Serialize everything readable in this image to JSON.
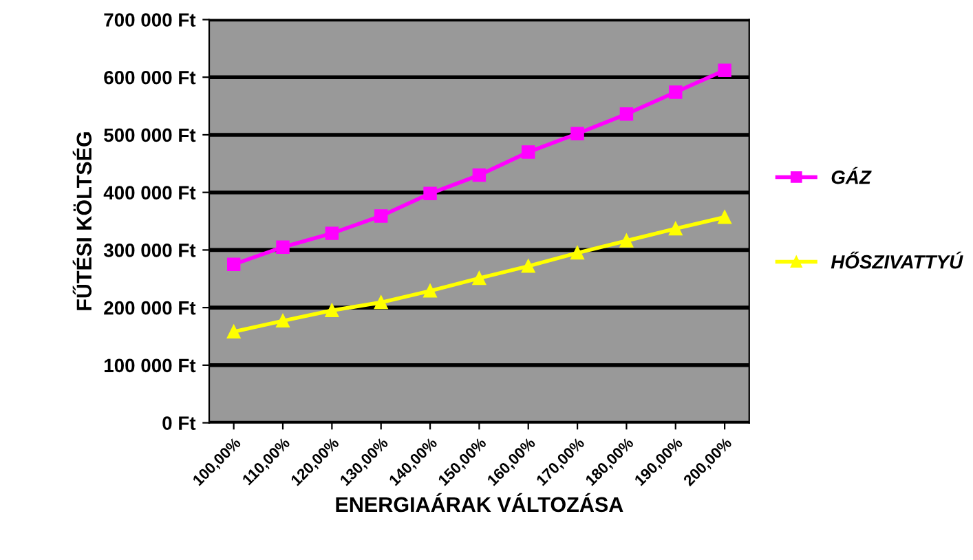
{
  "chart_data": {
    "type": "line",
    "xlabel": "ENERGIAÁRAK VÁLTOZÁSA",
    "ylabel": "FŰTÉSI KÖLTSÉG",
    "categories": [
      "100,00%",
      "110,00%",
      "120,00%",
      "130,00%",
      "140,00%",
      "150,00%",
      "160,00%",
      "170,00%",
      "180,00%",
      "190,00%",
      "200,00%"
    ],
    "series": [
      {
        "name": "GÁZ",
        "color": "#ff00ff",
        "marker": "square",
        "values": [
          275000,
          305000,
          329000,
          359000,
          398000,
          430000,
          470000,
          502000,
          536000,
          574000,
          612000
        ]
      },
      {
        "name": "HŐSZIVATTYÚ",
        "color": "#ffff00",
        "marker": "triangle",
        "values": [
          158000,
          177000,
          195000,
          209000,
          229000,
          251000,
          272000,
          295000,
          316000,
          337000,
          357000
        ]
      }
    ],
    "ylim": [
      0,
      700000
    ],
    "yticks": [
      {
        "value": 0,
        "label": "0 Ft"
      },
      {
        "value": 100000,
        "label": "100 000 Ft"
      },
      {
        "value": 200000,
        "label": "200 000 Ft"
      },
      {
        "value": 300000,
        "label": "300 000 Ft"
      },
      {
        "value": 400000,
        "label": "400 000 Ft"
      },
      {
        "value": 500000,
        "label": "500 000 Ft"
      },
      {
        "value": 600000,
        "label": "600 000 Ft"
      },
      {
        "value": 700000,
        "label": "700 000 Ft"
      }
    ],
    "grid": "y",
    "legend": "right"
  }
}
